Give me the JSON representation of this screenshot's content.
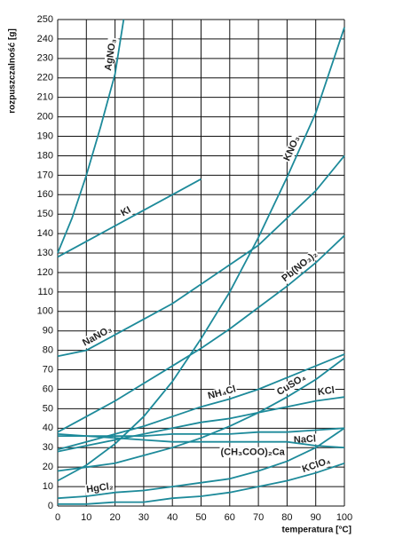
{
  "chart_data": {
    "type": "line",
    "x_label": "temperatura [°C]",
    "y_label": "rozpuszczalność [g]",
    "xlim": [
      0,
      100
    ],
    "xticks": [
      0,
      10,
      20,
      30,
      40,
      50,
      60,
      70,
      80,
      90,
      100
    ],
    "ylim": [
      0,
      250
    ],
    "yticks": [
      0,
      10,
      20,
      30,
      40,
      50,
      60,
      70,
      80,
      90,
      100,
      110,
      120,
      130,
      140,
      150,
      160,
      170,
      180,
      190,
      200,
      210,
      220,
      230,
      240,
      250
    ],
    "grid": true,
    "series": [
      {
        "name": "AgNO₃",
        "color": "#1d8a9a",
        "x": [
          0,
          5,
          10,
          15,
          20,
          23
        ],
        "values": [
          130,
          148,
          170,
          195,
          222,
          250
        ]
      },
      {
        "name": "KI",
        "color": "#1d8a9a",
        "x": [
          0,
          10,
          20,
          30,
          40,
          50
        ],
        "values": [
          128,
          136,
          144,
          152,
          160,
          168
        ]
      },
      {
        "name": "KNO₃",
        "color": "#1d8a9a",
        "x": [
          0,
          10,
          20,
          30,
          40,
          50,
          60,
          70,
          80,
          90,
          100
        ],
        "values": [
          13,
          21,
          32,
          46,
          64,
          86,
          110,
          138,
          169,
          202,
          246
        ]
      },
      {
        "name": "NaNO₃",
        "color": "#1d8a9a",
        "x": [
          0,
          10,
          20,
          30,
          40,
          50,
          60,
          70,
          80,
          90,
          100
        ],
        "values": [
          77,
          80,
          88,
          96,
          104,
          114,
          124,
          134,
          148,
          162,
          180
        ]
      },
      {
        "name": "Pb(NO₃)₂",
        "color": "#1d8a9a",
        "x": [
          0,
          10,
          20,
          30,
          40,
          50,
          60,
          70,
          80,
          90,
          100
        ],
        "values": [
          38,
          46,
          54,
          63,
          72,
          81,
          91,
          102,
          113,
          125,
          139
        ]
      },
      {
        "name": "NH₄Cl",
        "color": "#1d8a9a",
        "x": [
          0,
          10,
          20,
          30,
          40,
          50,
          60,
          70,
          80,
          90,
          100
        ],
        "values": [
          29,
          33,
          37,
          41,
          46,
          51,
          55,
          60,
          66,
          72,
          78
        ]
      },
      {
        "name": "CuSO₄",
        "color": "#1d8a9a",
        "x": [
          0,
          10,
          20,
          30,
          40,
          50,
          60,
          70,
          80,
          90,
          100
        ],
        "values": [
          18,
          20,
          22,
          26,
          30,
          35,
          41,
          48,
          56,
          65,
          76
        ]
      },
      {
        "name": "KCl",
        "color": "#1d8a9a",
        "x": [
          0,
          10,
          20,
          30,
          40,
          50,
          60,
          70,
          80,
          90,
          100
        ],
        "values": [
          28,
          31,
          34,
          37,
          40,
          43,
          45,
          48,
          51,
          54,
          56
        ]
      },
      {
        "name": "NaCl",
        "color": "#1d8a9a",
        "x": [
          0,
          10,
          20,
          30,
          40,
          50,
          60,
          70,
          80,
          90,
          100
        ],
        "values": [
          36,
          36,
          36,
          36,
          37,
          37,
          37,
          38,
          38,
          39,
          40
        ]
      },
      {
        "name": "(CH₃COO)₂Ca",
        "color": "#1d8a9a",
        "x": [
          0,
          10,
          20,
          30,
          40,
          50,
          60,
          70,
          80,
          90,
          100
        ],
        "values": [
          37,
          36,
          35,
          34,
          33,
          33,
          33,
          33,
          33,
          31,
          30
        ]
      },
      {
        "name": "KClO₄",
        "color": "#1d8a9a",
        "x": [
          0,
          10,
          20,
          30,
          40,
          50,
          60,
          70,
          80,
          90,
          100
        ],
        "values": [
          1,
          1,
          2,
          2,
          4,
          5,
          7,
          10,
          13,
          17,
          22
        ]
      },
      {
        "name": "HgCl₂",
        "color": "#1d8a9a",
        "x": [
          0,
          10,
          20,
          30,
          40,
          50,
          60,
          70,
          80,
          90,
          100
        ],
        "values": [
          4,
          5,
          7,
          8,
          10,
          12,
          14,
          18,
          23,
          30,
          40
        ]
      }
    ]
  }
}
